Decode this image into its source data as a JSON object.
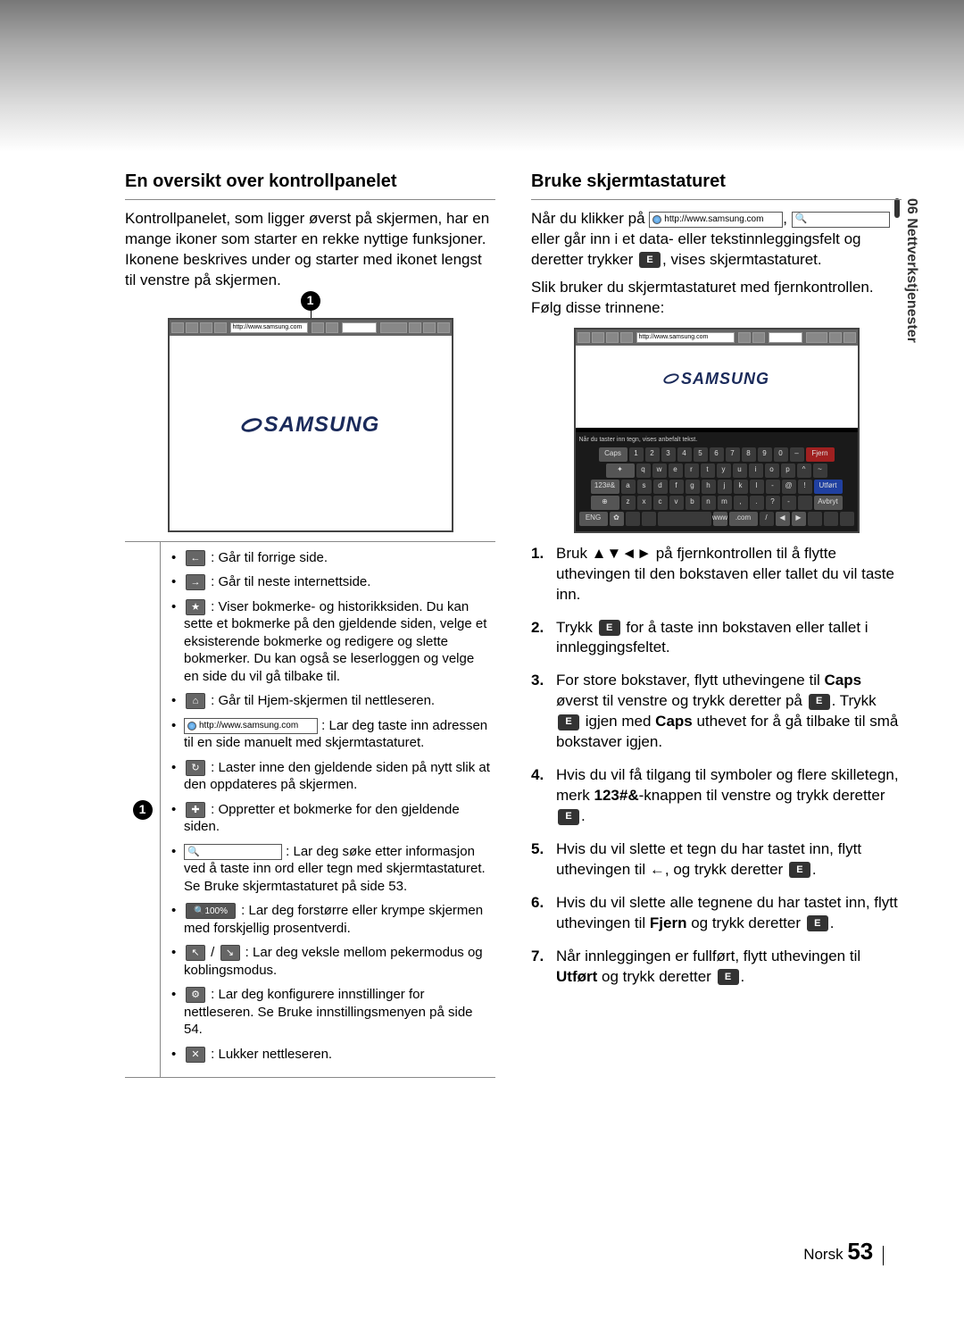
{
  "sideTab": "06  Nettverkstjenester",
  "left": {
    "heading": "En oversikt over kontrollpanelet",
    "intro": "Kontrollpanelet, som ligger øverst på skjermen, har en mange ikoner som starter en rekke nyttige funksjoner. Ikonene beskrives under og starter med ikonet lengst til venstre på skjermen.",
    "url": "http://www.samsung.com",
    "callout": "1",
    "items": {
      "i1": " : Går til forrige side.",
      "i2": " : Går til neste internettside.",
      "i3": " : Viser bokmerke- og historikksiden. Du kan sette et bokmerke på den gjeldende siden, velge et eksisterende bokmerke og redigere og slette bokmerker. Du kan også se leserloggen og velge en side du vil gå tilbake til.",
      "i4": " : Går til Hjem-skjermen til nettleseren.",
      "i5_url": "http://www.samsung.com",
      "i5": " : Lar deg taste inn adressen til en side manuelt med skjermtastaturet.",
      "i6": " : Laster inne den gjeldende siden på nytt slik at den oppdateres på skjermen.",
      "i7": " : Oppretter et bokmerke for den gjeldende siden.",
      "i8": " : Lar deg søke etter informasjon ved å taste inn ord eller tegn med skjermtastaturet. Se Bruke skjermtastaturet på side 53.",
      "i9_zoom": "100%",
      "i9": " : Lar deg forstørre eller krympe skjermen med forskjellig prosentverdi.",
      "i10": " : Lar deg veksle mellom pekermodus og koblingsmodus.",
      "i11": " : Lar deg konfigurere innstillinger for nettleseren. Se Bruke innstillingsmenyen på side 54.",
      "i12": " : Lukker nettleseren."
    }
  },
  "right": {
    "heading": "Bruke skjermtastaturet",
    "p1a": "Når du klikker på ",
    "p1_url": "http://www.samsung.com",
    "p1b": " eller går inn i et data- eller tekstinnleggingsfelt og deretter trykker ",
    "p1c": ", vises skjermtastaturet.",
    "p2": "Slik bruker du skjermtastaturet med fjernkontrollen. Følg disse trinnene:",
    "kbHint": "Når du taster inn tegn, vises anbefalt tekst.",
    "kb": {
      "r1": [
        "Caps",
        "1",
        "2",
        "3",
        "4",
        "5",
        "6",
        "7",
        "8",
        "9",
        "0",
        "–",
        "Fjern"
      ],
      "r2": [
        "✦",
        "q",
        "w",
        "e",
        "r",
        "t",
        "y",
        "u",
        "i",
        "o",
        "p",
        "^",
        "~"
      ],
      "r3": [
        "123#&",
        "a",
        "s",
        "d",
        "f",
        "g",
        "h",
        "j",
        "k",
        "l",
        "-",
        "@",
        "!",
        "Utført"
      ],
      "r4": [
        "⊕",
        "z",
        "x",
        "c",
        "v",
        "b",
        "n",
        "m",
        ",",
        ".",
        "?",
        "-",
        " ",
        "Avbryt"
      ],
      "r5": [
        "ENG",
        "✿",
        " ",
        " ",
        " ",
        "www",
        ".com",
        "/",
        "◀",
        "▶",
        " ",
        " ",
        " "
      ]
    },
    "steps": {
      "s1": "Bruk ▲▼◄► på fjernkontrollen til å flytte uthevingen til den bokstaven eller tallet du vil taste inn.",
      "s2a": "Trykk ",
      "s2b": " for å taste inn bokstaven eller tallet i innleggingsfeltet.",
      "s3a": "For store bokstaver, flytt uthevingene til ",
      "s3caps": "Caps",
      "s3b": " øverst til venstre og trykk deretter på ",
      "s3c": ". Trykk ",
      "s3d": " igjen med ",
      "s3e": " uthevet for å gå tilbake til små bokstaver igjen.",
      "s4a": "Hvis du vil få tilgang til symboler og flere skilletegn, merk ",
      "s4btn": "123#&",
      "s4b": "-knappen til venstre og trykk deretter ",
      "s4c": ".",
      "s5a": "Hvis du vil slette et tegn du har tastet inn, flytt uthevingen til ←, og trykk deretter ",
      "s5b": ".",
      "s6a": "Hvis du vil slette alle tegnene du har tastet inn, flytt uthevingen til ",
      "s6btn": "Fjern",
      "s6b": " og trykk deretter ",
      "s6c": ".",
      "s7a": "Når innleggingen er fullført, flytt uthevingen til ",
      "s7btn": "Utført",
      "s7b": " og trykk deretter ",
      "s7c": "."
    }
  },
  "footer": {
    "lang": "Norsk",
    "page": "53"
  }
}
